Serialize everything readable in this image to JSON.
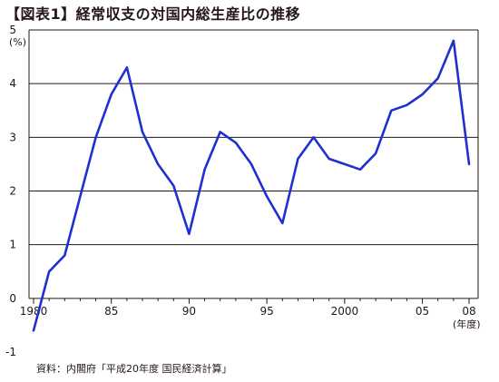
{
  "title": "【図表1】経常収支の対国内総生産比の推移",
  "source": "資料：内閣府「平成20年度 国民経済計算」",
  "chart_data": {
    "type": "line",
    "ylabel": "(%)",
    "xlabel": "(年度)",
    "ylim": [
      -1,
      5
    ],
    "xlim": [
      1980,
      2008
    ],
    "grid": true,
    "line_color": "#1f2fd1",
    "y_ticks": [
      {
        "value": 5,
        "label": "5"
      },
      {
        "value": 4,
        "label": "4"
      },
      {
        "value": 3,
        "label": "3"
      },
      {
        "value": 2,
        "label": "2"
      },
      {
        "value": 1,
        "label": "1"
      },
      {
        "value": 0,
        "label": "0"
      },
      {
        "value": -1,
        "label": "-1"
      }
    ],
    "x_ticks": [
      {
        "value": 1980,
        "label": "1980"
      },
      {
        "value": 1985,
        "label": "85"
      },
      {
        "value": 1990,
        "label": "90"
      },
      {
        "value": 1995,
        "label": "95"
      },
      {
        "value": 2000,
        "label": "2000"
      },
      {
        "value": 2005,
        "label": "05"
      },
      {
        "value": 2008,
        "label": "08"
      }
    ],
    "series": [
      {
        "x": [
          1980,
          1981,
          1982,
          1983,
          1984,
          1985,
          1986,
          1987,
          1988,
          1989,
          1990,
          1991,
          1992,
          1993,
          1994,
          1995,
          1996,
          1997,
          1998,
          1999,
          2000,
          2001,
          2002,
          2003,
          2004,
          2005,
          2006,
          2007,
          2008
        ],
        "y": [
          -0.6,
          0.5,
          0.8,
          1.9,
          3.0,
          3.8,
          4.3,
          3.1,
          2.5,
          2.1,
          1.2,
          2.4,
          3.1,
          2.9,
          2.5,
          1.9,
          1.4,
          2.6,
          3.0,
          2.6,
          2.5,
          2.4,
          2.7,
          3.5,
          3.6,
          3.8,
          4.1,
          4.8,
          2.5
        ]
      }
    ]
  }
}
